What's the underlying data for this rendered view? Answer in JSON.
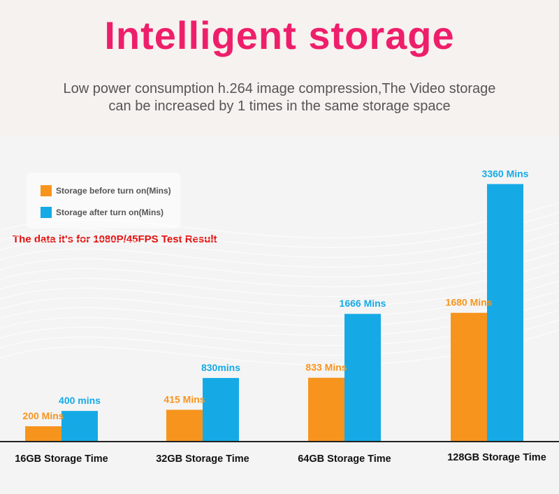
{
  "header": {
    "title": "Intelligent storage",
    "subtitle_line1": "Low power consumption h.264 image compression,The Video storage",
    "subtitle_line2": "can be increased by 1 times in the same storage space"
  },
  "note": "The data it's for 1080P/45FPS Test Result",
  "colors": {
    "title": "#ee1f6a",
    "before": "#f7941d",
    "after": "#15aae6",
    "note": "#e3100e"
  },
  "chart_data": {
    "type": "bar",
    "categories": [
      "16GB Storage Time",
      "32GB Storage Time",
      "64GB Storage Time",
      "128GB Storage Time"
    ],
    "series": [
      {
        "name": "Storage before turn on(Mins)",
        "values": [
          200,
          415,
          833,
          1680
        ],
        "labels": [
          "200 Mins",
          "415 Mins",
          "833 Mins",
          "1680 Mins"
        ],
        "color": "#f7941d"
      },
      {
        "name": "Storage after turn on(Mins)",
        "values": [
          400,
          830,
          1666,
          3360
        ],
        "labels": [
          "400 mins",
          "830mins",
          "1666 Mins",
          "3360 Mins"
        ],
        "color": "#15aae6"
      }
    ],
    "ylim": [
      0,
      3500
    ],
    "legend": "top-left",
    "grid": false
  }
}
